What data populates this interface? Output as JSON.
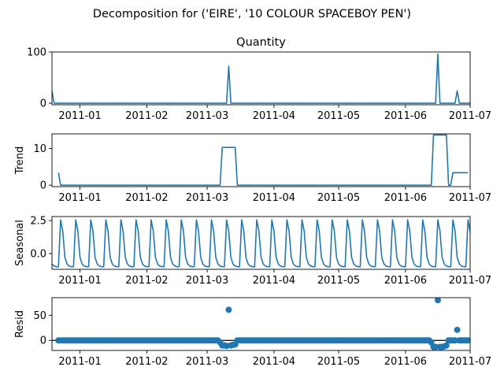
{
  "suptitle": "Decomposition for ('EIRE', '10 COLOUR SPACEBOY PEN')",
  "chart_data": [
    {
      "type": "line",
      "title": "Quantity",
      "ylabel": "",
      "color": "#1f77b4",
      "x_range": [
        "2010-12-19",
        "2011-07-01"
      ],
      "x_ticks": [
        "2011-01",
        "2011-02",
        "2011-03",
        "2011-04",
        "2011-05",
        "2011-06",
        "2011-07"
      ],
      "ylim": [
        -3,
        100
      ],
      "y_ticks": [
        0,
        100
      ],
      "series": [
        {
          "points": [
            [
              "2010-12-19",
              24
            ],
            [
              "2010-12-20",
              0
            ],
            [
              "2011-03-10",
              0
            ],
            [
              "2011-03-11",
              72
            ],
            [
              "2011-03-12",
              0
            ],
            [
              "2011-06-15",
              0
            ],
            [
              "2011-06-16",
              96
            ],
            [
              "2011-06-17",
              0
            ],
            [
              "2011-06-24",
              0
            ],
            [
              "2011-06-25",
              24
            ],
            [
              "2011-06-26",
              0
            ],
            [
              "2011-07-01",
              0
            ],
            [
              "2011-07-02",
              24
            ]
          ]
        }
      ]
    },
    {
      "type": "line",
      "title": "",
      "ylabel": "Trend",
      "color": "#1f77b4",
      "x_range": [
        "2010-12-19",
        "2011-07-01"
      ],
      "x_ticks": [
        "2011-01",
        "2011-02",
        "2011-03",
        "2011-04",
        "2011-05",
        "2011-06",
        "2011-07"
      ],
      "ylim": [
        -0.4,
        14
      ],
      "y_ticks": [
        0,
        10
      ],
      "series": [
        {
          "points": [
            [
              "2010-12-22",
              3.4
            ],
            [
              "2010-12-23",
              0
            ],
            [
              "2011-03-07",
              0
            ],
            [
              "2011-03-08",
              10.3
            ],
            [
              "2011-03-14",
              10.3
            ],
            [
              "2011-03-15",
              0
            ],
            [
              "2011-06-13",
              0
            ],
            [
              "2011-06-14",
              13.7
            ],
            [
              "2011-06-20",
              13.7
            ],
            [
              "2011-06-21",
              0
            ],
            [
              "2011-06-22",
              0
            ],
            [
              "2011-06-23",
              3.4
            ],
            [
              "2011-06-30",
              3.4
            ]
          ]
        }
      ]
    },
    {
      "type": "line",
      "title": "",
      "ylabel": "Seasonal",
      "color": "#1f77b4",
      "x_range": [
        "2010-12-19",
        "2011-07-01"
      ],
      "x_ticks": [
        "2011-01",
        "2011-02",
        "2011-03",
        "2011-04",
        "2011-05",
        "2011-06",
        "2011-07"
      ],
      "ylim": [
        -1.2,
        2.8
      ],
      "y_ticks": [
        0.0,
        2.5
      ],
      "y_tick_labels": [
        "0.0",
        "2.5"
      ],
      "series": [
        {
          "start": "2010-12-19",
          "pattern": [
            -0.8,
            -0.95,
            -1.0,
            -1.0,
            2.55,
            1.7,
            -0.3
          ],
          "end": "2011-07-02"
        }
      ]
    },
    {
      "type": "scatter",
      "title": "",
      "ylabel": "Resid",
      "color": "#1f77b4",
      "x_range": [
        "2010-12-19",
        "2011-07-01"
      ],
      "x_ticks": [
        "2011-01",
        "2011-02",
        "2011-03",
        "2011-04",
        "2011-05",
        "2011-06",
        "2011-07"
      ],
      "ylim": [
        -20,
        85
      ],
      "y_ticks": [
        0,
        50
      ],
      "zero_line": true,
      "series": [
        {
          "baseline_range": [
            "2010-12-22",
            "2011-06-30"
          ],
          "baseline_value": 0,
          "overrides": [
            [
              "2011-03-07",
              -4
            ],
            [
              "2011-03-08",
              -10
            ],
            [
              "2011-03-09",
              -10
            ],
            [
              "2011-03-10",
              -11
            ],
            [
              "2011-03-11",
              61
            ],
            [
              "2011-03-12",
              -10
            ],
            [
              "2011-03-13",
              -9
            ],
            [
              "2011-03-14",
              -8
            ],
            [
              "2011-06-13",
              -4
            ],
            [
              "2011-06-14",
              -13
            ],
            [
              "2011-06-15",
              -13
            ],
            [
              "2011-06-16",
              80
            ],
            [
              "2011-06-17",
              -13
            ],
            [
              "2011-06-18",
              -13
            ],
            [
              "2011-06-19",
              -12
            ],
            [
              "2011-06-20",
              -10
            ],
            [
              "2011-06-25",
              21
            ]
          ]
        }
      ]
    }
  ]
}
